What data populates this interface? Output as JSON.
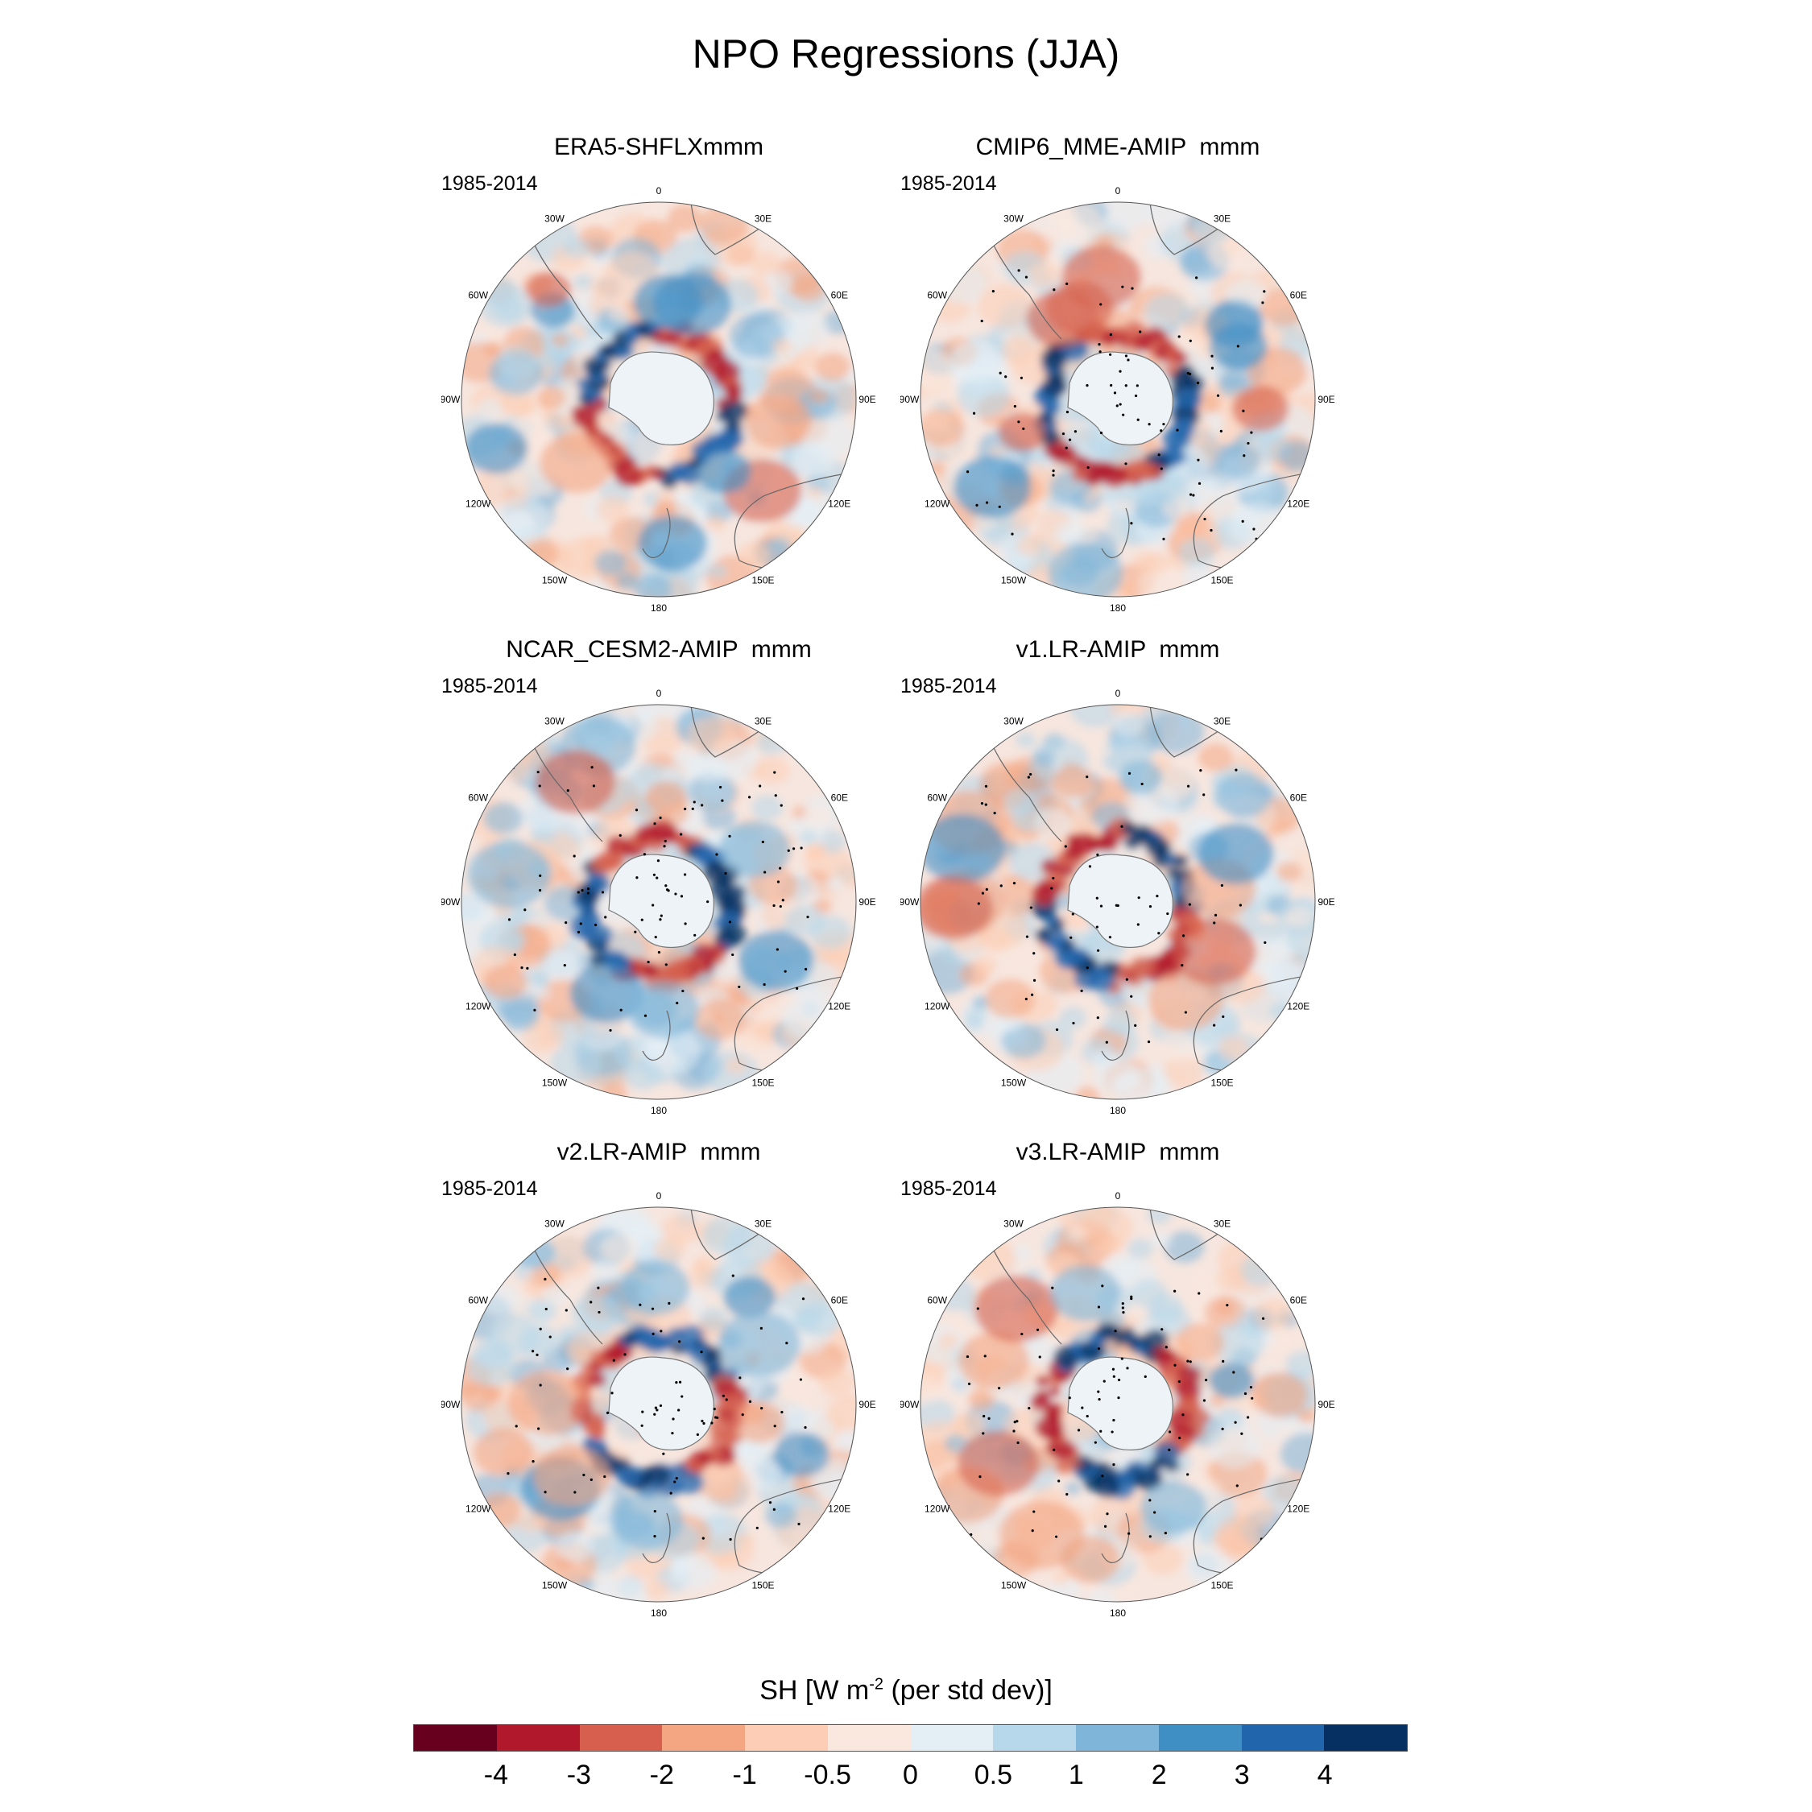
{
  "title": "NPO Regressions (JJA)",
  "panels": [
    {
      "title": "ERA5-SHFLXmmm",
      "period": "1985-2014"
    },
    {
      "title": "CMIP6_MME-AMIP  mmm",
      "period": "1985-2014"
    },
    {
      "title": "NCAR_CESM2-AMIP  mmm",
      "period": "1985-2014"
    },
    {
      "title": "v1.LR-AMIP  mmm",
      "period": "1985-2014"
    },
    {
      "title": "v2.LR-AMIP  mmm",
      "period": "1985-2014"
    },
    {
      "title": "v3.LR-AMIP  mmm",
      "period": "1985-2014"
    }
  ],
  "longitude_labels": [
    "0",
    "30E",
    "60E",
    "90E",
    "120E",
    "150E",
    "180",
    "150W",
    "120W",
    "90W",
    "60W",
    "30W"
  ],
  "colorbar": {
    "title_prefix": "SH [W m",
    "title_exponent": "-2",
    "title_suffix": " (per std dev)]",
    "colors": [
      "#67001f",
      "#b2182b",
      "#d6604d",
      "#f4a582",
      "#fdcdb5",
      "#fae8df",
      "#e4eef5",
      "#b7d7ea",
      "#7fb5d8",
      "#3f8ec4",
      "#2166ac",
      "#053061"
    ],
    "tick_labels": [
      "-4",
      "-3",
      "-2",
      "-1",
      "-0.5",
      "0",
      "0.5",
      "1",
      "2",
      "3",
      "4"
    ]
  }
}
